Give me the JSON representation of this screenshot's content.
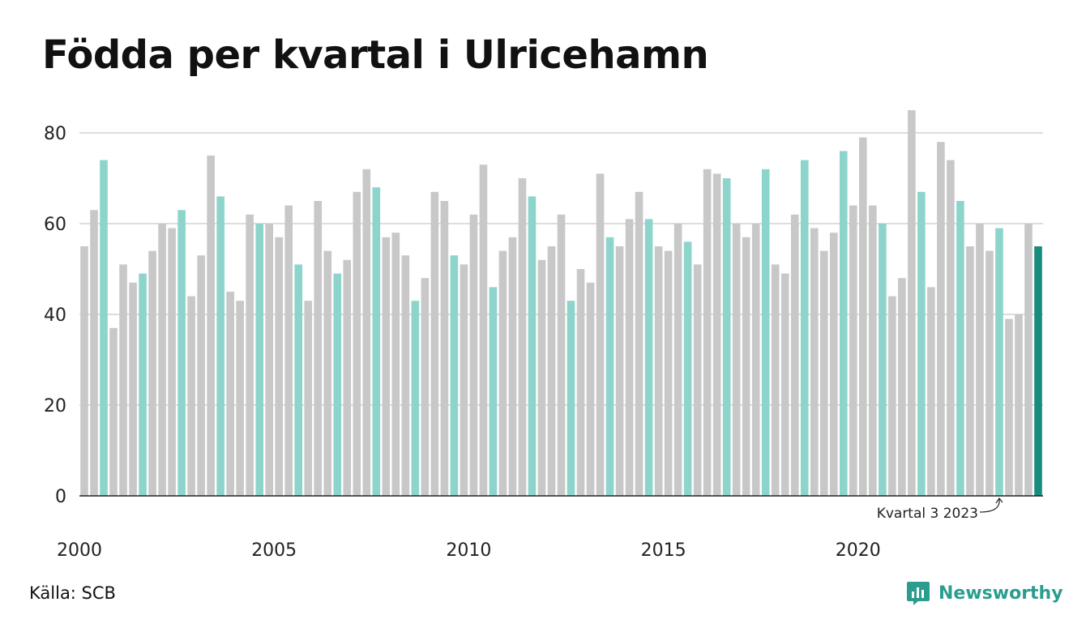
{
  "title": "Födda per kvartal i Ulricehamn",
  "source": "Källa: SCB",
  "brand": {
    "name": "Newsworthy",
    "icon": "newsworthy-logo-icon",
    "color": "#2a9d8f"
  },
  "annotation": {
    "text": "Kvartal 3 2023"
  },
  "colors": {
    "other_quarters": "#c8c8c8",
    "q3": "#8dd5cc",
    "latest": "#1a8c7e",
    "grid": "#dddddd",
    "axis": "#222222"
  },
  "chart_data": {
    "type": "bar",
    "title": "Födda per kvartal i Ulricehamn",
    "xlabel": "",
    "ylabel": "",
    "ylim": [
      0,
      87
    ],
    "yticks": [
      0,
      20,
      40,
      60,
      80
    ],
    "xtick_labels": [
      "2000",
      "2005",
      "2010",
      "2015",
      "2020"
    ],
    "grid": true,
    "start": {
      "year": 2000,
      "quarter": 1
    },
    "categories": [
      "2000 Q1",
      "2000 Q2",
      "2000 Q3",
      "2000 Q4",
      "2001 Q1",
      "2001 Q2",
      "2001 Q3",
      "2001 Q4",
      "2002 Q1",
      "2002 Q2",
      "2002 Q3",
      "2002 Q4",
      "2003 Q1",
      "2003 Q2",
      "2003 Q3",
      "2003 Q4",
      "2004 Q1",
      "2004 Q2",
      "2004 Q3",
      "2004 Q4",
      "2005 Q1",
      "2005 Q2",
      "2005 Q3",
      "2005 Q4",
      "2006 Q1",
      "2006 Q2",
      "2006 Q3",
      "2006 Q4",
      "2007 Q1",
      "2007 Q2",
      "2007 Q3",
      "2007 Q4",
      "2008 Q1",
      "2008 Q2",
      "2008 Q3",
      "2008 Q4",
      "2009 Q1",
      "2009 Q2",
      "2009 Q3",
      "2009 Q4",
      "2010 Q1",
      "2010 Q2",
      "2010 Q3",
      "2010 Q4",
      "2011 Q1",
      "2011 Q2",
      "2011 Q3",
      "2011 Q4",
      "2012 Q1",
      "2012 Q2",
      "2012 Q3",
      "2012 Q4",
      "2013 Q1",
      "2013 Q2",
      "2013 Q3",
      "2013 Q4",
      "2014 Q1",
      "2014 Q2",
      "2014 Q3",
      "2014 Q4",
      "2015 Q1",
      "2015 Q2",
      "2015 Q3",
      "2015 Q4",
      "2016 Q1",
      "2016 Q2",
      "2016 Q3",
      "2016 Q4",
      "2017 Q1",
      "2017 Q2",
      "2017 Q3",
      "2017 Q4",
      "2018 Q1",
      "2018 Q2",
      "2018 Q3",
      "2018 Q4",
      "2019 Q1",
      "2019 Q2",
      "2019 Q3",
      "2019 Q4",
      "2020 Q1",
      "2020 Q2",
      "2020 Q3",
      "2020 Q4",
      "2021 Q1",
      "2021 Q2",
      "2021 Q3",
      "2021 Q4",
      "2022 Q1",
      "2022 Q2",
      "2022 Q3",
      "2022 Q4",
      "2023 Q1",
      "2023 Q2",
      "2023 Q3",
      "2023 Q4",
      "2024 Q1",
      "2024 Q2",
      "2024 Q3"
    ],
    "values": [
      55,
      63,
      74,
      37,
      51,
      47,
      49,
      54,
      60,
      59,
      63,
      44,
      53,
      75,
      66,
      45,
      43,
      62,
      60,
      60,
      57,
      64,
      51,
      43,
      65,
      54,
      49,
      52,
      67,
      72,
      68,
      57,
      58,
      53,
      43,
      48,
      67,
      65,
      53,
      51,
      62,
      73,
      46,
      54,
      57,
      70,
      66,
      52,
      55,
      62,
      43,
      50,
      47,
      71,
      57,
      55,
      61,
      67,
      61,
      55,
      54,
      60,
      56,
      51,
      72,
      71,
      70,
      60,
      57,
      60,
      72,
      51,
      49,
      62,
      74,
      59,
      54,
      58,
      76,
      64,
      79,
      64,
      60,
      44,
      48,
      85,
      67,
      46,
      78,
      74,
      65,
      55,
      60,
      54,
      59,
      39,
      40,
      60,
      55
    ],
    "highlight": "Q3",
    "latest": "2024 Q3"
  }
}
